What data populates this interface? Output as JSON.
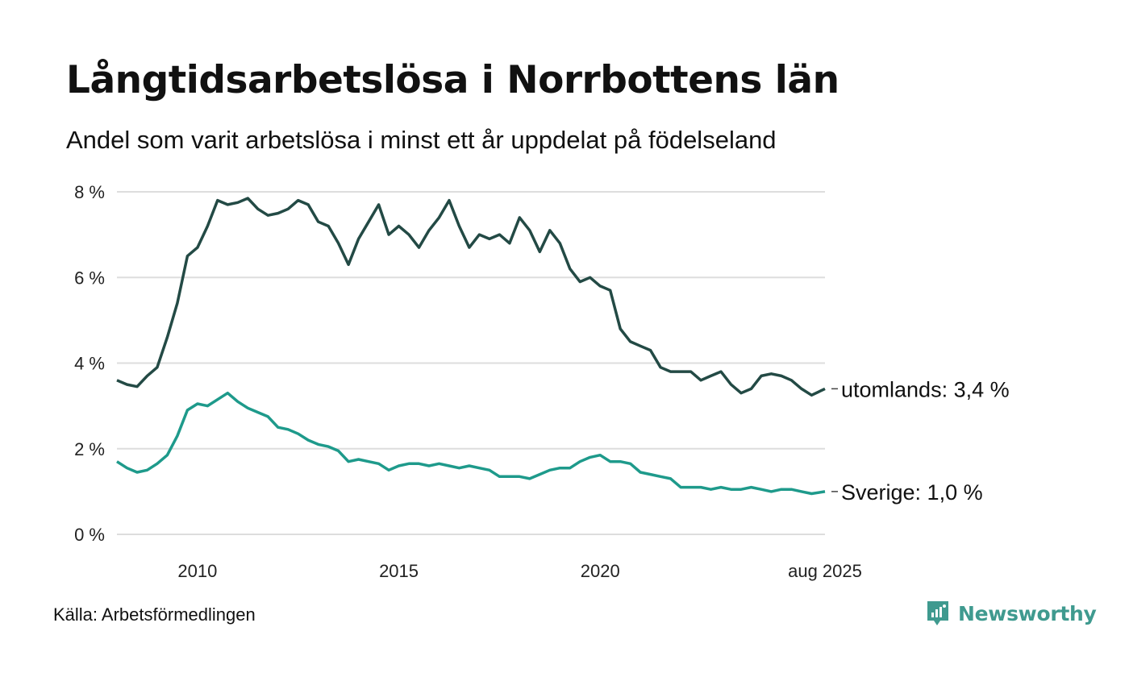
{
  "title": "Långtidsarbetslösa i Norrbottens län",
  "subtitle": "Andel som varit arbetslösa i minst ett år uppdelat på födelseland",
  "source": "Källa: Arbetsförmedlingen",
  "brand": {
    "name": "Newsworthy",
    "icon": "newsworthy-logo-icon",
    "color": "#3f9a8f"
  },
  "chart_data": {
    "type": "line",
    "title": "Långtidsarbetslösa i Norrbottens län",
    "subtitle": "Andel som varit arbetslösa i minst ett år uppdelat på födelseland",
    "ylim": [
      0,
      8
    ],
    "yticks": [
      0,
      2,
      4,
      6,
      8
    ],
    "ytick_labels": [
      "0 %",
      "2 %",
      "4 %",
      "6 %",
      "8 %"
    ],
    "xlim": [
      2008.0,
      2025.583
    ],
    "xticks": [
      2010,
      2015,
      2020,
      2025.583
    ],
    "xtick_labels": [
      "2010",
      "2015",
      "2020",
      "aug 2025"
    ],
    "grid": true,
    "series": [
      {
        "name": "utomlands",
        "end_label": "utomlands: 3,4 %",
        "color": "#234a45",
        "x": [
          2008.0,
          2008.25,
          2008.5,
          2008.75,
          2009.0,
          2009.25,
          2009.5,
          2009.75,
          2010.0,
          2010.25,
          2010.5,
          2010.75,
          2011.0,
          2011.25,
          2011.5,
          2011.75,
          2012.0,
          2012.25,
          2012.5,
          2012.75,
          2013.0,
          2013.25,
          2013.5,
          2013.75,
          2014.0,
          2014.25,
          2014.5,
          2014.75,
          2015.0,
          2015.25,
          2015.5,
          2015.75,
          2016.0,
          2016.25,
          2016.5,
          2016.75,
          2017.0,
          2017.25,
          2017.5,
          2017.75,
          2018.0,
          2018.25,
          2018.5,
          2018.75,
          2019.0,
          2019.25,
          2019.5,
          2019.75,
          2020.0,
          2020.25,
          2020.5,
          2020.75,
          2021.0,
          2021.25,
          2021.5,
          2021.75,
          2022.0,
          2022.25,
          2022.5,
          2022.75,
          2023.0,
          2023.25,
          2023.5,
          2023.75,
          2024.0,
          2024.25,
          2024.5,
          2024.75,
          2025.0,
          2025.25,
          2025.583
        ],
        "values": [
          3.6,
          3.5,
          3.45,
          3.7,
          3.9,
          4.6,
          5.4,
          6.5,
          6.7,
          7.2,
          7.8,
          7.7,
          7.75,
          7.85,
          7.6,
          7.45,
          7.5,
          7.6,
          7.8,
          7.7,
          7.3,
          7.2,
          6.8,
          6.3,
          6.9,
          7.3,
          7.7,
          7.0,
          7.2,
          7.0,
          6.7,
          7.1,
          7.4,
          7.8,
          7.2,
          6.7,
          7.0,
          6.9,
          7.0,
          6.8,
          7.4,
          7.1,
          6.6,
          7.1,
          6.8,
          6.2,
          5.9,
          6.0,
          5.8,
          5.7,
          4.8,
          4.5,
          4.4,
          4.3,
          3.9,
          3.8,
          3.8,
          3.8,
          3.6,
          3.7,
          3.8,
          3.5,
          3.3,
          3.4,
          3.7,
          3.75,
          3.7,
          3.6,
          3.4,
          3.25,
          3.4
        ]
      },
      {
        "name": "Sverige",
        "end_label": "Sverige: 1,0 %",
        "color": "#1e9a8b",
        "x": [
          2008.0,
          2008.25,
          2008.5,
          2008.75,
          2009.0,
          2009.25,
          2009.5,
          2009.75,
          2010.0,
          2010.25,
          2010.5,
          2010.75,
          2011.0,
          2011.25,
          2011.5,
          2011.75,
          2012.0,
          2012.25,
          2012.5,
          2012.75,
          2013.0,
          2013.25,
          2013.5,
          2013.75,
          2014.0,
          2014.25,
          2014.5,
          2014.75,
          2015.0,
          2015.25,
          2015.5,
          2015.75,
          2016.0,
          2016.25,
          2016.5,
          2016.75,
          2017.0,
          2017.25,
          2017.5,
          2017.75,
          2018.0,
          2018.25,
          2018.5,
          2018.75,
          2019.0,
          2019.25,
          2019.5,
          2019.75,
          2020.0,
          2020.25,
          2020.5,
          2020.75,
          2021.0,
          2021.25,
          2021.5,
          2021.75,
          2022.0,
          2022.25,
          2022.5,
          2022.75,
          2023.0,
          2023.25,
          2023.5,
          2023.75,
          2024.0,
          2024.25,
          2024.5,
          2024.75,
          2025.0,
          2025.25,
          2025.583
        ],
        "values": [
          1.7,
          1.55,
          1.45,
          1.5,
          1.65,
          1.85,
          2.3,
          2.9,
          3.05,
          3.0,
          3.15,
          3.3,
          3.1,
          2.95,
          2.85,
          2.75,
          2.5,
          2.45,
          2.35,
          2.2,
          2.1,
          2.05,
          1.95,
          1.7,
          1.75,
          1.7,
          1.65,
          1.5,
          1.6,
          1.65,
          1.65,
          1.6,
          1.65,
          1.6,
          1.55,
          1.6,
          1.55,
          1.5,
          1.35,
          1.35,
          1.35,
          1.3,
          1.4,
          1.5,
          1.55,
          1.55,
          1.7,
          1.8,
          1.85,
          1.7,
          1.7,
          1.65,
          1.45,
          1.4,
          1.35,
          1.3,
          1.1,
          1.1,
          1.1,
          1.05,
          1.1,
          1.05,
          1.05,
          1.1,
          1.05,
          1.0,
          1.05,
          1.05,
          1.0,
          0.95,
          1.0
        ]
      }
    ]
  }
}
